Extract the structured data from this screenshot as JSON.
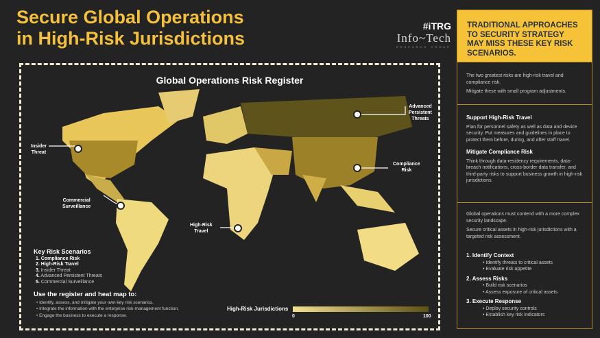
{
  "title": {
    "line1": "Secure Global Operations",
    "line2": "in High-Risk Jurisdictions"
  },
  "logo": {
    "itrg": "#iTRG",
    "name": "Info~Tech",
    "sub": "RESEARCH GROUP"
  },
  "map": {
    "title": "Global Operations Risk Register",
    "markers": [
      {
        "label1": "Insider",
        "label2": "Threat"
      },
      {
        "label1": "Commercial",
        "label2": "Surveillance"
      },
      {
        "label1": "High-Risk",
        "label2": "Travel"
      },
      {
        "label1": "Compliance",
        "label2": "Risk"
      },
      {
        "label1": "Advanced",
        "label2": "Persistent",
        "label3": "Threats"
      }
    ],
    "key": {
      "title": "Key Risk Scenarios",
      "items": [
        "Compliance Risk",
        "High-Risk Travel",
        "Insider Threat",
        "Advanced Persistent Threats",
        "Commercial Surveillance"
      ]
    },
    "use": {
      "title": "Use the register and heat map to:",
      "items": [
        "Identify, assess, and mitigate your own key risk scenarios.",
        "Integrate the information with the enterprise risk-management function.",
        "Engage the business to execute a response."
      ]
    },
    "legend": {
      "title": "High-Risk Jurisdictions",
      "min": "0",
      "max": "100"
    }
  },
  "right": {
    "headline": "TRADITIONAL APPROACHES TO SECURITY STRATEGY MAY MISS THESE KEY RISK SCENARIOS.",
    "intro": [
      "The two greatest risks are high-risk travel and compliance risk.",
      "Mitigate these with small program adjustments."
    ],
    "s1_title": "Support High-Risk Travel",
    "s1_text": "Plan for personnel safety as well as data and device security. Put measures and guidelines in place to protect them before, during, and after staff travel.",
    "s2_title": "Mitigate Compliance Risk",
    "s2_text": "Think through data-residency requirements, data-breach notifications, cross-border data transfer, and third-party risks to support business growth in high-risk jurisdictions.",
    "outro": [
      "Global operations must contend with a more complex security landscape.",
      "Secure critical assets in high-risk jurisdictions with a targeted risk assessment."
    ],
    "steps": [
      {
        "title": "1. Identify Context",
        "items": [
          "Identify threats to critical assets",
          "Evaluate risk appetite"
        ]
      },
      {
        "title": "2. Assess Risks",
        "items": [
          "Build risk scenarios",
          "Assess exposure of critical assets"
        ]
      },
      {
        "title": "3. Execute Response",
        "items": [
          "Deploy security controls",
          "Establish key risk indicators"
        ]
      }
    ]
  },
  "colors": {
    "accent": "#f4c03e",
    "low": "#f4e08e",
    "high": "#5c5015",
    "bg": "#232323"
  }
}
